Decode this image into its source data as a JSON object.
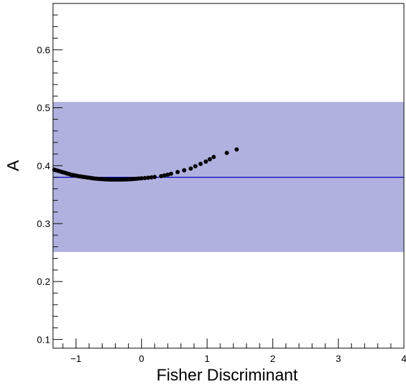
{
  "chart_data": {
    "type": "scatter",
    "title": "",
    "xlabel": "Fisher Discriminant",
    "ylabel": "A",
    "xlim": [
      -1.35,
      4.0
    ],
    "ylim": [
      0.085,
      0.68
    ],
    "x_ticks": [
      -1,
      0,
      1,
      2,
      3,
      4
    ],
    "x_tick_labels": [
      "−1",
      "0",
      "1",
      "2",
      "3",
      "4"
    ],
    "y_ticks": [
      0.1,
      0.2,
      0.3,
      0.4,
      0.5,
      0.6
    ],
    "y_tick_labels": [
      "0.1",
      "0.2",
      "0.3",
      "0.4",
      "0.5",
      "0.6"
    ],
    "grid": false,
    "band": {
      "y_low": 0.251,
      "y_high": 0.51,
      "color": "#b1b1e0"
    },
    "reference_line": {
      "y": 0.38,
      "color": "#0000b3"
    },
    "marker_color": "#000000",
    "points": [
      {
        "x": -1.33,
        "y": 0.393
      },
      {
        "x": -1.3,
        "y": 0.392
      },
      {
        "x": -1.27,
        "y": 0.391
      },
      {
        "x": -1.24,
        "y": 0.39
      },
      {
        "x": -1.21,
        "y": 0.389
      },
      {
        "x": -1.18,
        "y": 0.388
      },
      {
        "x": -1.15,
        "y": 0.387
      },
      {
        "x": -1.12,
        "y": 0.386
      },
      {
        "x": -1.09,
        "y": 0.385
      },
      {
        "x": -1.06,
        "y": 0.384
      },
      {
        "x": -1.03,
        "y": 0.3835
      },
      {
        "x": -1.0,
        "y": 0.383
      },
      {
        "x": -0.97,
        "y": 0.382
      },
      {
        "x": -0.94,
        "y": 0.3815
      },
      {
        "x": -0.91,
        "y": 0.381
      },
      {
        "x": -0.88,
        "y": 0.3805
      },
      {
        "x": -0.85,
        "y": 0.38
      },
      {
        "x": -0.82,
        "y": 0.3795
      },
      {
        "x": -0.79,
        "y": 0.379
      },
      {
        "x": -0.76,
        "y": 0.3785
      },
      {
        "x": -0.73,
        "y": 0.378
      },
      {
        "x": -0.7,
        "y": 0.3777
      },
      {
        "x": -0.67,
        "y": 0.3774
      },
      {
        "x": -0.64,
        "y": 0.3771
      },
      {
        "x": -0.61,
        "y": 0.3768
      },
      {
        "x": -0.58,
        "y": 0.3766
      },
      {
        "x": -0.55,
        "y": 0.3764
      },
      {
        "x": -0.52,
        "y": 0.3762
      },
      {
        "x": -0.49,
        "y": 0.3761
      },
      {
        "x": -0.46,
        "y": 0.376
      },
      {
        "x": -0.43,
        "y": 0.376
      },
      {
        "x": -0.4,
        "y": 0.376
      },
      {
        "x": -0.37,
        "y": 0.376
      },
      {
        "x": -0.34,
        "y": 0.376
      },
      {
        "x": -0.31,
        "y": 0.376
      },
      {
        "x": -0.28,
        "y": 0.3761
      },
      {
        "x": -0.25,
        "y": 0.3762
      },
      {
        "x": -0.22,
        "y": 0.3763
      },
      {
        "x": -0.19,
        "y": 0.3765
      },
      {
        "x": -0.16,
        "y": 0.3767
      },
      {
        "x": -0.13,
        "y": 0.377
      },
      {
        "x": -0.1,
        "y": 0.3772
      },
      {
        "x": -0.07,
        "y": 0.3775
      },
      {
        "x": -0.04,
        "y": 0.3778
      },
      {
        "x": 0.0,
        "y": 0.3781
      },
      {
        "x": 0.05,
        "y": 0.3786
      },
      {
        "x": 0.1,
        "y": 0.3791
      },
      {
        "x": 0.15,
        "y": 0.3797
      },
      {
        "x": 0.2,
        "y": 0.3805
      },
      {
        "x": 0.3,
        "y": 0.382
      },
      {
        "x": 0.35,
        "y": 0.3832
      },
      {
        "x": 0.4,
        "y": 0.3845
      },
      {
        "x": 0.45,
        "y": 0.386
      },
      {
        "x": 0.55,
        "y": 0.389
      },
      {
        "x": 0.65,
        "y": 0.392
      },
      {
        "x": 0.75,
        "y": 0.395
      },
      {
        "x": 0.82,
        "y": 0.399
      },
      {
        "x": 0.9,
        "y": 0.403
      },
      {
        "x": 0.98,
        "y": 0.407
      },
      {
        "x": 1.04,
        "y": 0.411
      },
      {
        "x": 1.1,
        "y": 0.415
      },
      {
        "x": 1.3,
        "y": 0.422
      },
      {
        "x": 1.45,
        "y": 0.428
      }
    ]
  }
}
